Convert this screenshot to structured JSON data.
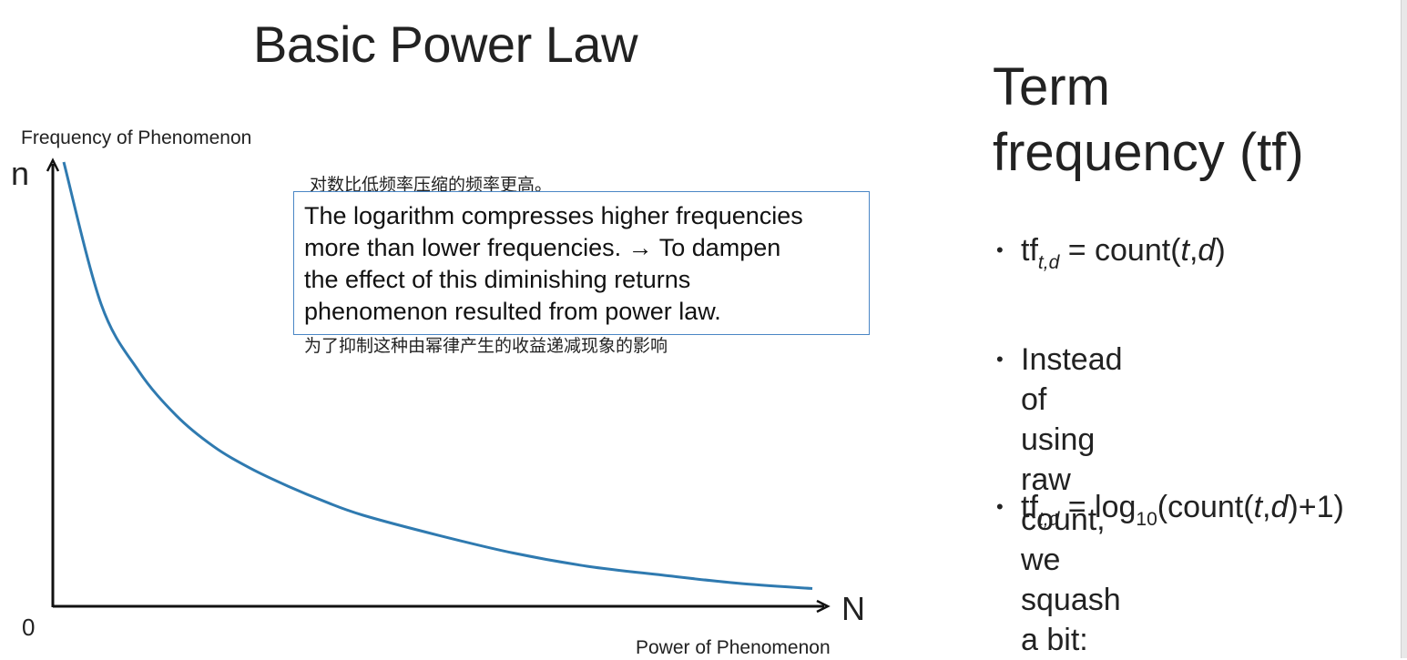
{
  "slide": {
    "title": "Basic Power Law"
  },
  "chart_data": {
    "type": "line",
    "ylabel": "Frequency of Phenomenon",
    "xlabel": "Power of Phenomenon",
    "y_axis_top_label": "n",
    "x_axis_right_label": "N",
    "origin_label": "0",
    "series": [
      {
        "x": [
          0.0,
          0.05,
          0.1,
          0.15,
          0.2,
          0.25,
          0.3,
          0.35,
          0.4,
          0.5,
          0.6,
          0.7,
          0.8,
          0.9,
          1.0
        ],
        "y": [
          1.0,
          0.68,
          0.53,
          0.43,
          0.36,
          0.31,
          0.27,
          0.235,
          0.205,
          0.16,
          0.12,
          0.09,
          0.07,
          0.052,
          0.04
        ]
      }
    ],
    "color": "#2f7ab0"
  },
  "annotation": {
    "cn_top": "对数比低频率压缩的频率更高。",
    "text": "The logarithm compresses higher frequencies\nmore than lower frequencies. → To dampen\nthe effect of this diminishing returns\nphenomenon resulted from power law.",
    "cn_bottom": "为了抑制这种由幂律产生的收益递减现象的影响"
  },
  "right_panel": {
    "heading": "Term\nfrequency (tf)",
    "bullet_symbol": "•",
    "bullet1": {
      "tf": "tf",
      "sub": "t,d",
      "eq": " = count(",
      "t": "t",
      "comma": ",",
      "d": "d",
      "close": ")"
    },
    "bullet2": "Instead of using raw\ncount, we squash a bit:",
    "bullet3": {
      "tf": "tf",
      "sub": "t,d",
      "eq": " = log",
      "base": "10",
      "open": "(count(",
      "t": "t",
      "comma": ",",
      "d": "d",
      "close": ")+1)"
    }
  },
  "colors": {
    "curve": "#2f7ab0",
    "box_border": "#4a86c5",
    "axis": "#111111"
  }
}
